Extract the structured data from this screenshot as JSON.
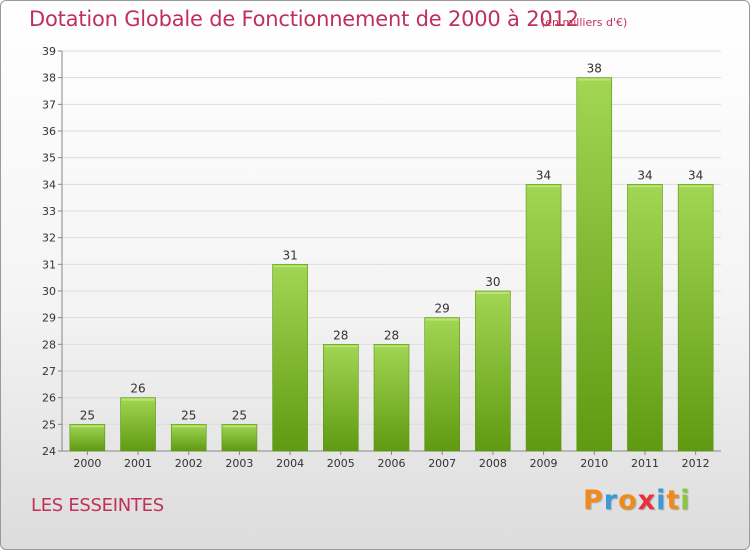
{
  "header": {
    "title": "Dotation Globale de Fonctionnement de 2000 à 2012",
    "unit": "(en milliers d'€)"
  },
  "footer": {
    "commune": "LES ESSEINTES",
    "logo_text": "Proxiti",
    "logo_colors": [
      "#f08a1c",
      "#3a9ad9",
      "#f08a1c",
      "#e8313a",
      "#3a9ad9",
      "#f08a1c",
      "#8cc63f"
    ]
  },
  "chart_data": {
    "type": "bar",
    "title": "Dotation Globale de Fonctionnement de 2000 à 2012",
    "subtitle": "(en milliers d'€)",
    "categories": [
      "2000",
      "2001",
      "2002",
      "2003",
      "2004",
      "2005",
      "2006",
      "2007",
      "2008",
      "2009",
      "2010",
      "2011",
      "2012"
    ],
    "values": [
      25,
      26,
      25,
      25,
      31,
      28,
      28,
      29,
      30,
      34,
      38,
      34,
      34
    ],
    "ylim": [
      24,
      39
    ],
    "yticks": [
      24,
      25,
      26,
      27,
      28,
      29,
      30,
      31,
      32,
      33,
      34,
      35,
      36,
      37,
      38,
      39
    ],
    "grid": true,
    "xlabel": "",
    "ylabel": "",
    "bar_color": "#7dbb2e"
  }
}
